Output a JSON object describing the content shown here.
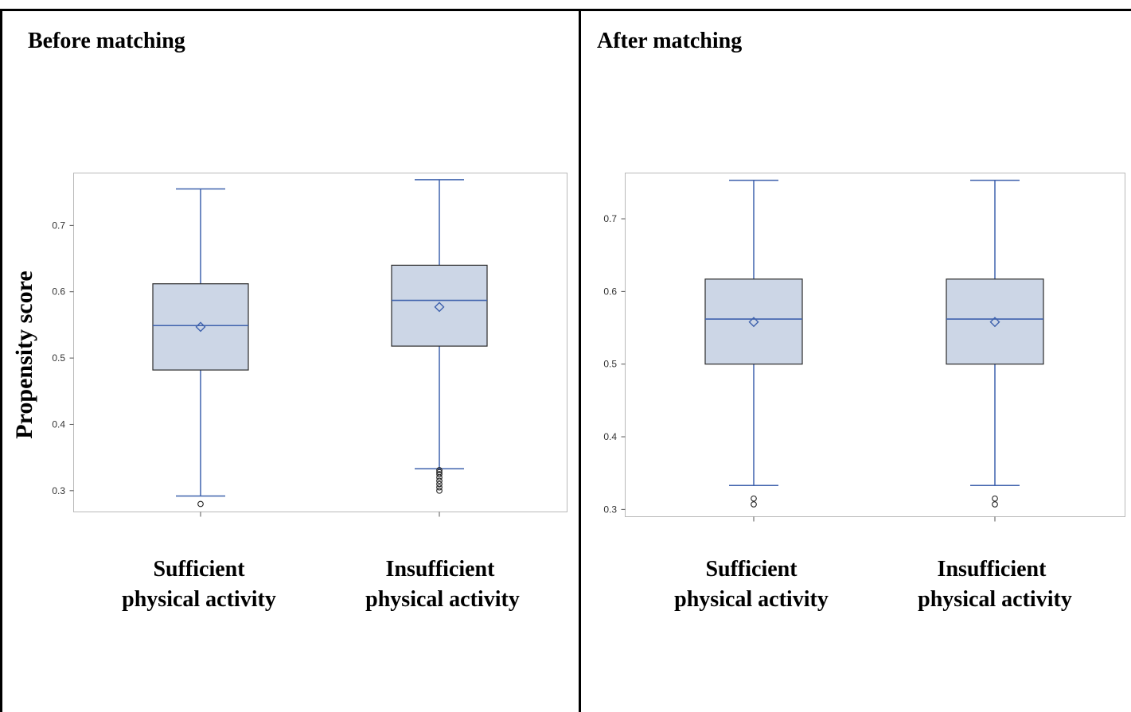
{
  "chart_data": [
    {
      "type": "boxplot",
      "panel_title": "Before matching",
      "ylabel": "Propensity score",
      "ylim": [
        0.268,
        0.779
      ],
      "yticks": [
        "0.3",
        "0.4",
        "0.5",
        "0.6",
        "0.7"
      ],
      "tick_values": [
        0.3,
        0.4,
        0.5,
        0.6,
        0.7
      ],
      "categories": [
        "Sufficient physical activity",
        "Insufficient physical activity"
      ],
      "category_labels": [
        {
          "line1": "Sufficient",
          "line2": "physical activity"
        },
        {
          "line1": "Insufficient",
          "line2": "physical activity"
        }
      ],
      "boxes": [
        {
          "min": 0.292,
          "q1": 0.482,
          "median": 0.549,
          "mean": 0.547,
          "q3": 0.612,
          "max": 0.755,
          "outliers": [
            0.28
          ]
        },
        {
          "min": 0.333,
          "q1": 0.518,
          "median": 0.587,
          "mean": 0.577,
          "q3": 0.64,
          "max": 0.769,
          "outliers": [
            0.3,
            0.305,
            0.31,
            0.315,
            0.32,
            0.325,
            0.328,
            0.331
          ]
        }
      ],
      "grid": false,
      "box_fill": "#ccd6e6",
      "line_color": "#3f62ad"
    },
    {
      "type": "boxplot",
      "panel_title": "After matching",
      "ylabel": "",
      "ylim": [
        0.29,
        0.763
      ],
      "yticks": [
        "0.3",
        "0.4",
        "0.5",
        "0.6",
        "0.7"
      ],
      "tick_values": [
        0.3,
        0.4,
        0.5,
        0.6,
        0.7
      ],
      "categories": [
        "Sufficient physical activity",
        "Insufficient physical activity"
      ],
      "category_labels": [
        {
          "line1": "Sufficient",
          "line2": "physical activity"
        },
        {
          "line1": "Insufficient",
          "line2": "physical activity"
        }
      ],
      "boxes": [
        {
          "min": 0.333,
          "q1": 0.5,
          "median": 0.562,
          "mean": 0.558,
          "q3": 0.617,
          "max": 0.753,
          "outliers": [
            0.307,
            0.315
          ]
        },
        {
          "min": 0.333,
          "q1": 0.5,
          "median": 0.562,
          "mean": 0.558,
          "q3": 0.617,
          "max": 0.753,
          "outliers": [
            0.307,
            0.315
          ]
        }
      ],
      "grid": false,
      "box_fill": "#ccd6e6",
      "line_color": "#3f62ad"
    }
  ]
}
